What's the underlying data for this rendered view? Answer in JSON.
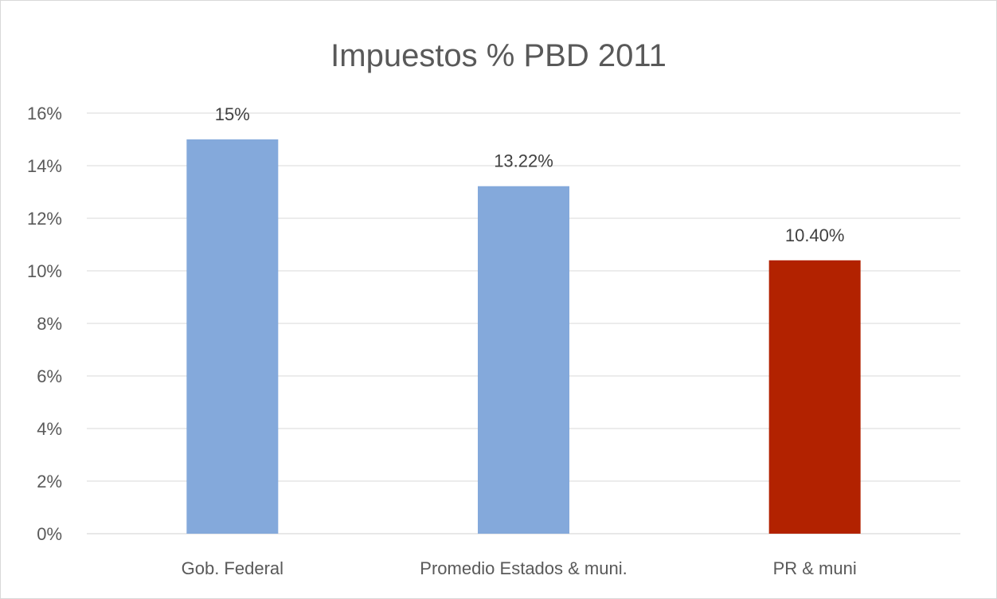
{
  "chart_data": {
    "type": "bar",
    "title": "Impuestos % PBD 2011",
    "xlabel": "",
    "ylabel": "",
    "categories": [
      "Gob. Federal",
      "Promedio Estados & muni.",
      "PR & muni"
    ],
    "values": [
      15,
      13.22,
      10.4
    ],
    "data_labels": [
      "15%",
      "13.22%",
      "10.40%"
    ],
    "bar_colors": [
      "#84a9db",
      "#84a9db",
      "#b22200"
    ],
    "ylim": [
      0,
      16
    ],
    "yticks": [
      0,
      2,
      4,
      6,
      8,
      10,
      12,
      14,
      16
    ],
    "ytick_labels": [
      "0%",
      "2%",
      "4%",
      "6%",
      "8%",
      "10%",
      "12%",
      "14%",
      "16%"
    ],
    "grid": true,
    "legend": "none"
  }
}
